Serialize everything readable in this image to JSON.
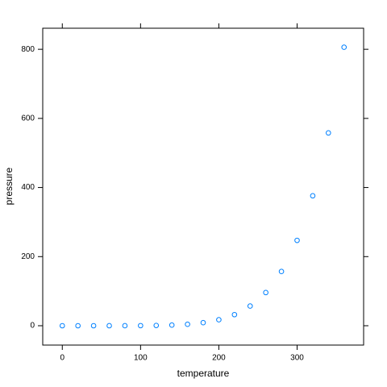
{
  "chart_data": {
    "type": "scatter",
    "x_label": "temperature",
    "y_label": "pressure",
    "x": [
      0,
      20,
      40,
      60,
      80,
      100,
      120,
      140,
      160,
      180,
      200,
      220,
      240,
      260,
      280,
      300,
      320,
      340,
      360
    ],
    "series": [
      {
        "color": "#0080ff",
        "values": [
          0.0002,
          0.0012,
          0.006,
          0.03,
          0.09,
          0.27,
          0.75,
          1.85,
          4.2,
          8.8,
          17.3,
          32.1,
          57,
          96,
          157,
          247,
          376,
          558,
          806
        ]
      }
    ],
    "xlim": [
      -25,
      385
    ],
    "ylim": [
      -56,
      861
    ],
    "xticks": [
      0,
      100,
      200,
      300
    ],
    "yticks": [
      0,
      200,
      400,
      600,
      800
    ]
  }
}
